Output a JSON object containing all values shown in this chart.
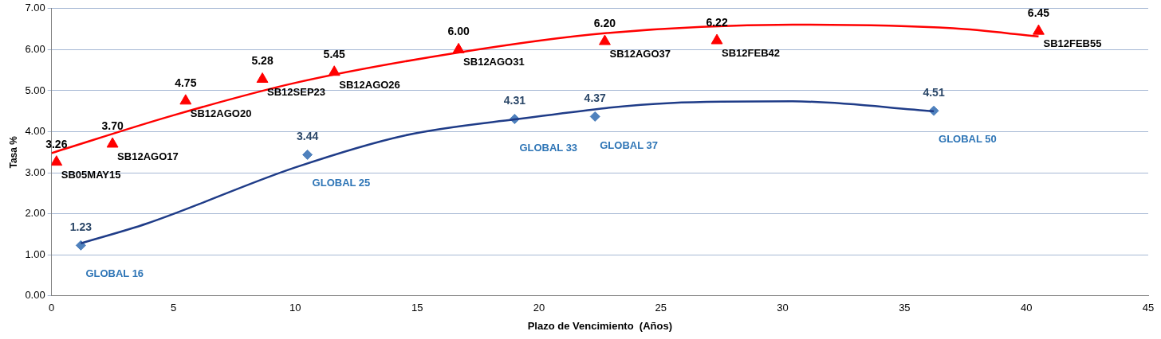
{
  "chart_data": {
    "type": "scatter",
    "xlabel": "Plazo de Vencimiento  (Años)",
    "ylabel": "Tasa %",
    "xlim": [
      0,
      45
    ],
    "xticks": [
      0,
      5,
      10,
      15,
      20,
      25,
      30,
      35,
      40,
      45
    ],
    "ylim": [
      0,
      7
    ],
    "yticks": [
      {
        "value": 0,
        "label": "0.00"
      },
      {
        "value": 1,
        "label": "1.00"
      },
      {
        "value": 2,
        "label": "2.00"
      },
      {
        "value": 3,
        "label": "3.00"
      },
      {
        "value": 4,
        "label": "4.00"
      },
      {
        "value": 5,
        "label": "5.00"
      },
      {
        "value": 6,
        "label": "6.00"
      },
      {
        "value": 7,
        "label": "7.00"
      }
    ],
    "grid": "y",
    "legend": false,
    "series": [
      {
        "type": "line",
        "color": "#ff0000",
        "marker": "none",
        "x": [
          0,
          5,
          10,
          16.7,
          22.7,
          30.4,
          37,
          40.5
        ],
        "values": [
          3.48,
          4.4,
          5.19,
          5.93,
          6.4,
          6.61,
          6.52,
          6.32
        ]
      },
      {
        "type": "line",
        "color": "#1f3c88",
        "marker": "none",
        "x": [
          1.2,
          3.9,
          10,
          14.5,
          19,
          25.4,
          30.4,
          36.2
        ],
        "values": [
          1.28,
          1.76,
          3.13,
          3.91,
          4.3,
          4.7,
          4.74,
          4.5
        ]
      },
      {
        "color": "#ff0000",
        "marker": "triangle",
        "x": [
          0.2,
          2.5,
          5.5,
          8.65,
          11.6,
          16.7,
          22.7,
          27.3,
          40.5
        ],
        "values": [
          3.26,
          3.7,
          4.75,
          5.28,
          5.45,
          6.0,
          6.2,
          6.22,
          6.45
        ],
        "value_labels": [
          "3.26",
          "3.70",
          "4.75",
          "5.28",
          "5.45",
          "6.00",
          "6.20",
          "6.22",
          "6.45"
        ]
      },
      {
        "color": "#4f81bd",
        "marker": "diamond",
        "x": [
          1.2,
          10.5,
          19,
          22.3,
          36.2
        ],
        "values": [
          1.23,
          3.44,
          4.31,
          4.37,
          4.51
        ],
        "value_labels": [
          "1.23",
          "3.44",
          "4.31",
          "4.37",
          "4.51"
        ]
      }
    ],
    "annotations": [
      {
        "text": "SB05MAY15",
        "x": 0.2,
        "y": 3.26
      },
      {
        "text": "SB12AGO17",
        "x": 2.5,
        "y": 3.7
      },
      {
        "text": "SB12AGO20",
        "x": 5.5,
        "y": 4.75
      },
      {
        "text": "SB12SEP23",
        "x": 8.65,
        "y": 5.28
      },
      {
        "text": "SB12AGO26",
        "x": 11.6,
        "y": 5.45
      },
      {
        "text": "SB12AGO31",
        "x": 16.7,
        "y": 6.0
      },
      {
        "text": "SB12AGO37",
        "x": 22.7,
        "y": 6.2
      },
      {
        "text": "SB12FEB42",
        "x": 27.3,
        "y": 6.22
      },
      {
        "text": "SB12FEB55",
        "x": 40.5,
        "y": 6.45
      },
      {
        "text": "GLOBAL 16",
        "x": 1.2,
        "y": 1.23
      },
      {
        "text": "GLOBAL 25",
        "x": 10.5,
        "y": 3.44
      },
      {
        "text": "GLOBAL 33",
        "x": 19,
        "y": 4.31
      },
      {
        "text": "GLOBAL 37",
        "x": 22.3,
        "y": 4.37
      },
      {
        "text": "GLOBAL 50",
        "x": 36.2,
        "y": 4.51
      }
    ]
  }
}
